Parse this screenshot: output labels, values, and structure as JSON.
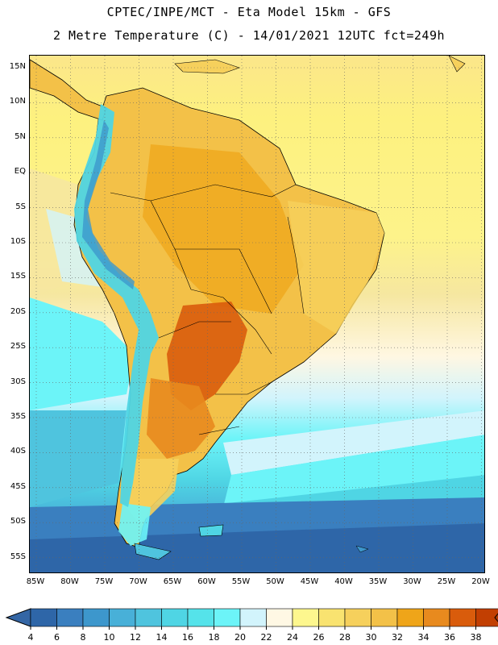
{
  "header": {
    "line1": "CPTEC/INPE/MCT -  Eta Model 15km - GFS",
    "line2": "2 Metre Temperature (C) - 14/01/2021 12UTC fct=249h"
  },
  "map": {
    "lat_labels": [
      "15N",
      "10N",
      "5N",
      "EQ",
      "5S",
      "10S",
      "15S",
      "20S",
      "25S",
      "30S",
      "35S",
      "40S",
      "45S",
      "50S",
      "55S"
    ],
    "lon_labels": [
      "85W",
      "80W",
      "75W",
      "70W",
      "65W",
      "60W",
      "55W",
      "50W",
      "45W",
      "40W",
      "35W",
      "30W",
      "25W",
      "20W"
    ]
  },
  "colorbar": {
    "ticks": [
      "4",
      "6",
      "8",
      "10",
      "12",
      "14",
      "16",
      "18",
      "20",
      "22",
      "24",
      "26",
      "28",
      "30",
      "32",
      "34",
      "36",
      "38"
    ],
    "colors": [
      "#2e66a8",
      "#3a7fbf",
      "#3d97cc",
      "#48b0d8",
      "#4fc4de",
      "#4fd5e4",
      "#55e3ea",
      "#6cf4f8",
      "#d2f4fc",
      "#fff8e4",
      "#fdf78e",
      "#f9e370",
      "#f6d05c",
      "#f3c148",
      "#efa519",
      "#e88a1e",
      "#d95c0c",
      "#c23f02",
      "#a52c02"
    ],
    "below_color": "#3466a5",
    "above_color": "#b03a04"
  }
}
